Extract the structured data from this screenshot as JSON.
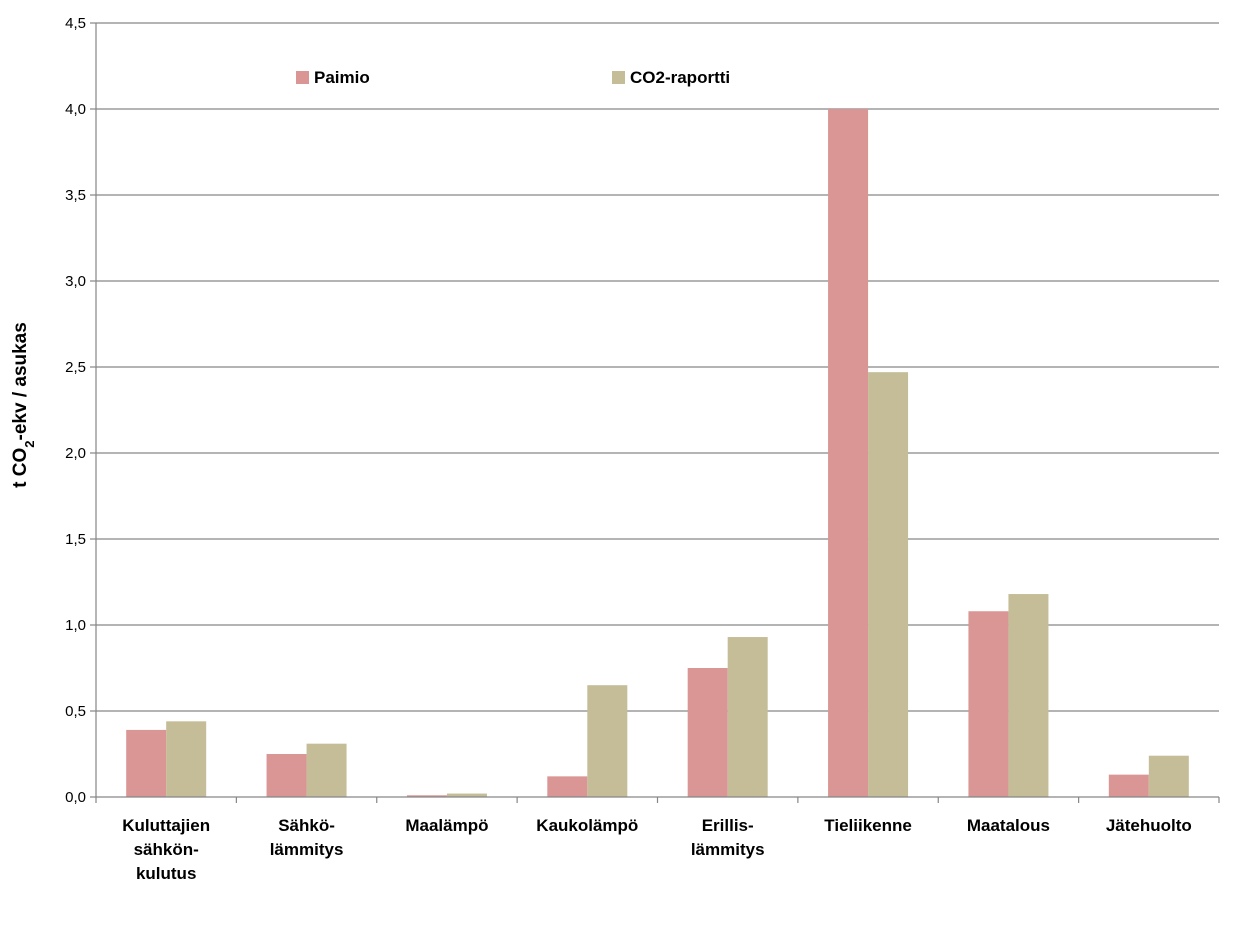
{
  "chart_data": {
    "type": "bar",
    "categories": [
      [
        "Kuluttajien",
        "sähkön-",
        "kulutus"
      ],
      [
        "Sähkö-",
        "lämmitys"
      ],
      [
        "Maalämpö"
      ],
      [
        "Kaukolämpö"
      ],
      [
        "Erillis-",
        "lämmitys"
      ],
      [
        "Tieliikenne"
      ],
      [
        "Maatalous"
      ],
      [
        "Jätehuolto"
      ]
    ],
    "series": [
      {
        "name": "Paimio",
        "color": "#d99694",
        "values": [
          0.39,
          0.25,
          0.01,
          0.12,
          0.75,
          4.0,
          1.08,
          0.13
        ]
      },
      {
        "name": "CO2-raportti",
        "color": "#c4bd97",
        "values": [
          0.44,
          0.31,
          0.02,
          0.65,
          0.93,
          2.47,
          1.18,
          0.24
        ]
      }
    ],
    "ylabel": {
      "prefix": "t CO",
      "subscript": "2",
      "suffix": "-ekv / asukas"
    },
    "ylim": [
      0,
      4.5
    ],
    "yticks": [
      "0,0",
      "0,5",
      "1,0",
      "1,5",
      "2,0",
      "2,5",
      "3,0",
      "3,5",
      "4,0",
      "4,5"
    ],
    "grid": true,
    "legend": "top-left"
  }
}
